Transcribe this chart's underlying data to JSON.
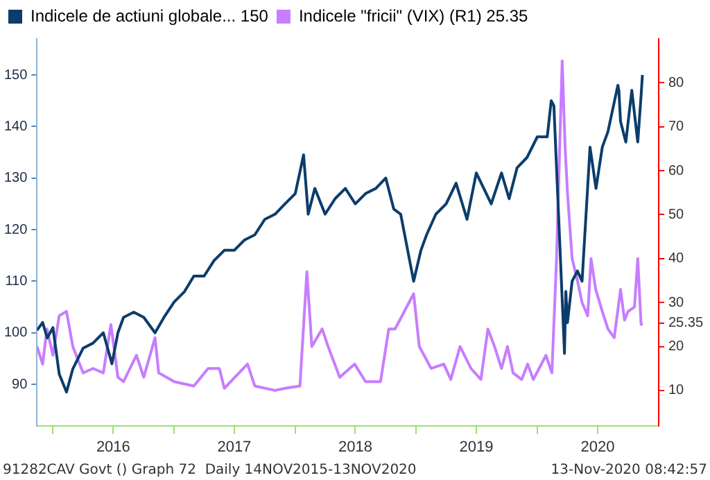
{
  "chart_data": {
    "type": "line",
    "legend": "top left",
    "marker": "none",
    "line_style": "solid",
    "xlim": [
      "2015-11-14",
      "2021-01-01"
    ],
    "xticks": [
      {
        "value": "2016-01-01",
        "label": null
      },
      {
        "value": "2016-07-01",
        "label": "2016"
      },
      {
        "value": "2017-01-01",
        "label": null
      },
      {
        "value": "2017-07-01",
        "label": "2017"
      },
      {
        "value": "2018-01-01",
        "label": null
      },
      {
        "value": "2018-07-01",
        "label": "2018"
      },
      {
        "value": "2019-01-01",
        "label": null
      },
      {
        "value": "2019-07-01",
        "label": "2019"
      },
      {
        "value": "2020-01-01",
        "label": null
      },
      {
        "value": "2020-07-01",
        "label": "2020"
      }
    ],
    "ylim": [
      82,
      157
    ],
    "yticks": [
      90,
      100,
      110,
      120,
      130,
      140,
      150
    ],
    "y2lim": [
      2,
      90
    ],
    "y2ticks": [
      10,
      20,
      25.35,
      30,
      40,
      50,
      60,
      70,
      80
    ],
    "annotations": [
      "91282CAV Govt () Graph 72  Daily 14NOV2015-13NOV2020",
      "13-Nov-2020 08:42:57"
    ],
    "series": [
      {
        "name": "Indicele de actiuni globale... 150",
        "color": "#0b3d6b",
        "x": [
          "2015-11-14",
          "2015-12-01",
          "2015-12-15",
          "2016-01-01",
          "2016-01-20",
          "2016-02-11",
          "2016-03-01",
          "2016-04-01",
          "2016-05-01",
          "2016-06-01",
          "2016-06-27",
          "2016-07-15",
          "2016-08-01",
          "2016-09-01",
          "2016-10-01",
          "2016-11-04",
          "2016-12-01",
          "2017-01-01",
          "2017-02-01",
          "2017-03-01",
          "2017-04-01",
          "2017-05-01",
          "2017-06-01",
          "2017-07-01",
          "2017-08-01",
          "2017-09-01",
          "2017-10-01",
          "2017-11-01",
          "2017-12-01",
          "2018-01-01",
          "2018-01-26",
          "2018-02-09",
          "2018-03-01",
          "2018-04-01",
          "2018-05-01",
          "2018-06-01",
          "2018-07-01",
          "2018-08-01",
          "2018-09-01",
          "2018-10-01",
          "2018-10-25",
          "2018-11-15",
          "2018-12-24",
          "2019-01-15",
          "2019-02-01",
          "2019-03-01",
          "2019-04-01",
          "2019-05-01",
          "2019-06-03",
          "2019-07-01",
          "2019-08-15",
          "2019-09-15",
          "2019-10-08",
          "2019-11-01",
          "2019-12-01",
          "2020-01-01",
          "2020-01-31",
          "2020-02-12",
          "2020-02-20",
          "2020-03-23",
          "2020-03-27",
          "2020-04-01",
          "2020-04-15",
          "2020-05-01",
          "2020-05-15",
          "2020-06-08",
          "2020-06-26",
          "2020-07-15",
          "2020-08-01",
          "2020-08-31",
          "2020-09-03",
          "2020-09-08",
          "2020-09-24",
          "2020-10-12",
          "2020-10-30",
          "2020-11-09",
          "2020-11-13"
        ],
        "values": [
          100.5,
          102,
          99,
          101,
          92,
          88.5,
          93,
          97,
          98,
          100,
          94,
          100,
          103,
          104,
          103,
          100,
          103,
          106,
          108,
          111,
          111,
          114,
          116,
          116,
          118,
          119,
          122,
          123,
          125,
          127,
          134.5,
          123,
          128,
          123,
          126,
          128,
          125,
          127,
          128,
          130,
          124,
          123,
          110,
          116,
          119,
          123,
          125,
          129,
          122,
          131,
          125,
          131,
          126,
          132,
          134,
          138,
          138,
          145,
          144,
          96,
          108,
          102,
          110,
          112,
          110,
          136,
          128,
          136,
          139,
          148,
          147,
          141,
          137,
          147,
          137,
          146,
          150
        ]
      },
      {
        "name": "Indicele \"fricii\" (VIX) (R1) 25.35",
        "color": "#c77dff",
        "axis": "y2",
        "x": [
          "2015-11-14",
          "2015-12-01",
          "2015-12-14",
          "2016-01-01",
          "2016-01-20",
          "2016-02-11",
          "2016-03-01",
          "2016-04-01",
          "2016-05-01",
          "2016-06-01",
          "2016-06-24",
          "2016-07-15",
          "2016-08-01",
          "2016-09-09",
          "2016-10-01",
          "2016-11-04",
          "2016-11-15",
          "2017-01-01",
          "2017-03-01",
          "2017-04-13",
          "2017-05-17",
          "2017-06-01",
          "2017-08-10",
          "2017-09-01",
          "2017-11-01",
          "2017-12-01",
          "2018-01-15",
          "2018-02-05",
          "2018-02-20",
          "2018-03-23",
          "2018-04-10",
          "2018-05-15",
          "2018-06-29",
          "2018-08-01",
          "2018-09-15",
          "2018-10-10",
          "2018-10-29",
          "2018-12-24",
          "2019-01-10",
          "2019-02-15",
          "2019-03-25",
          "2019-04-15",
          "2019-05-13",
          "2019-06-15",
          "2019-07-15",
          "2019-08-05",
          "2019-08-25",
          "2019-09-15",
          "2019-10-03",
          "2019-10-20",
          "2019-11-15",
          "2019-12-03",
          "2019-12-20",
          "2020-01-27",
          "2020-02-14",
          "2020-02-28",
          "2020-03-16",
          "2020-03-25",
          "2020-04-01",
          "2020-04-15",
          "2020-05-01",
          "2020-05-15",
          "2020-06-01",
          "2020-06-11",
          "2020-06-25",
          "2020-07-15",
          "2020-08-01",
          "2020-08-20",
          "2020-09-08",
          "2020-09-20",
          "2020-10-01",
          "2020-10-20",
          "2020-10-30",
          "2020-11-09",
          "2020-11-13"
        ],
        "values": [
          20,
          16,
          24,
          18,
          27,
          28,
          20,
          14,
          15,
          14,
          25,
          13,
          12,
          18,
          13,
          22,
          14,
          12,
          11,
          15,
          15,
          10.5,
          16,
          11,
          10,
          10.5,
          11,
          37,
          20,
          24,
          20,
          13,
          16,
          12,
          12,
          24,
          24,
          32,
          20,
          15,
          16,
          12.5,
          20,
          15,
          12.5,
          24,
          20,
          15,
          20,
          14,
          12.5,
          16,
          12.5,
          18,
          14,
          40,
          85,
          65,
          55,
          40,
          35,
          30,
          27,
          40,
          33,
          28,
          24,
          22,
          33,
          26,
          28,
          29,
          40,
          25,
          25.35
        ]
      }
    ]
  }
}
